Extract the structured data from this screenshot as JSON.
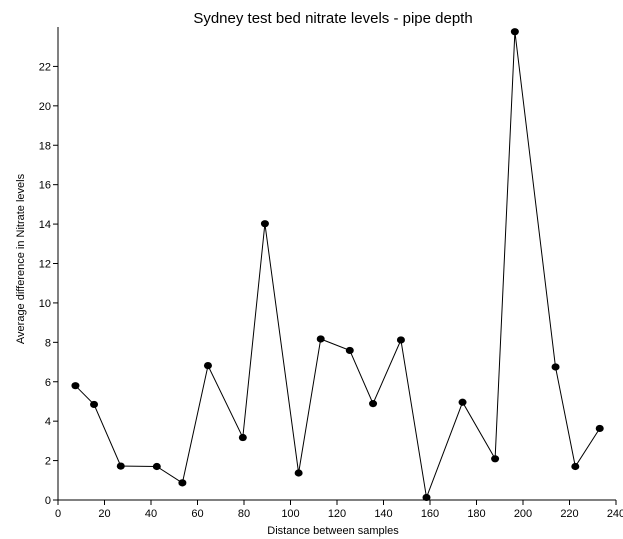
{
  "chart_data": {
    "type": "line",
    "title": "Sydney test bed nitrate levels - pipe depth",
    "xlabel": "Distance between samples",
    "ylabel": "Average difference in Nitrate levels",
    "xlim": [
      0,
      240
    ],
    "ylim": [
      0,
      24
    ],
    "xticks": [
      0,
      20,
      40,
      60,
      80,
      100,
      120,
      140,
      160,
      180,
      200,
      220,
      240
    ],
    "yticks": [
      0,
      2,
      4,
      6,
      8,
      10,
      12,
      14,
      16,
      18,
      20,
      22
    ],
    "grid": false,
    "series": [
      {
        "marker": "circle",
        "color": "#000000",
        "x": [
          7.5,
          15.5,
          27,
          42.5,
          53.5,
          64.5,
          79.5,
          89,
          103.5,
          113,
          125.5,
          135.5,
          147.5,
          158.5,
          174,
          188,
          196.5,
          214,
          222.5,
          233
        ],
        "y": [
          5.8,
          4.85,
          1.72,
          1.7,
          0.87,
          6.82,
          3.17,
          14.02,
          1.37,
          8.17,
          7.59,
          4.89,
          8.12,
          0.13,
          4.96,
          2.09,
          23.76,
          6.75,
          1.7,
          3.63
        ]
      }
    ]
  }
}
